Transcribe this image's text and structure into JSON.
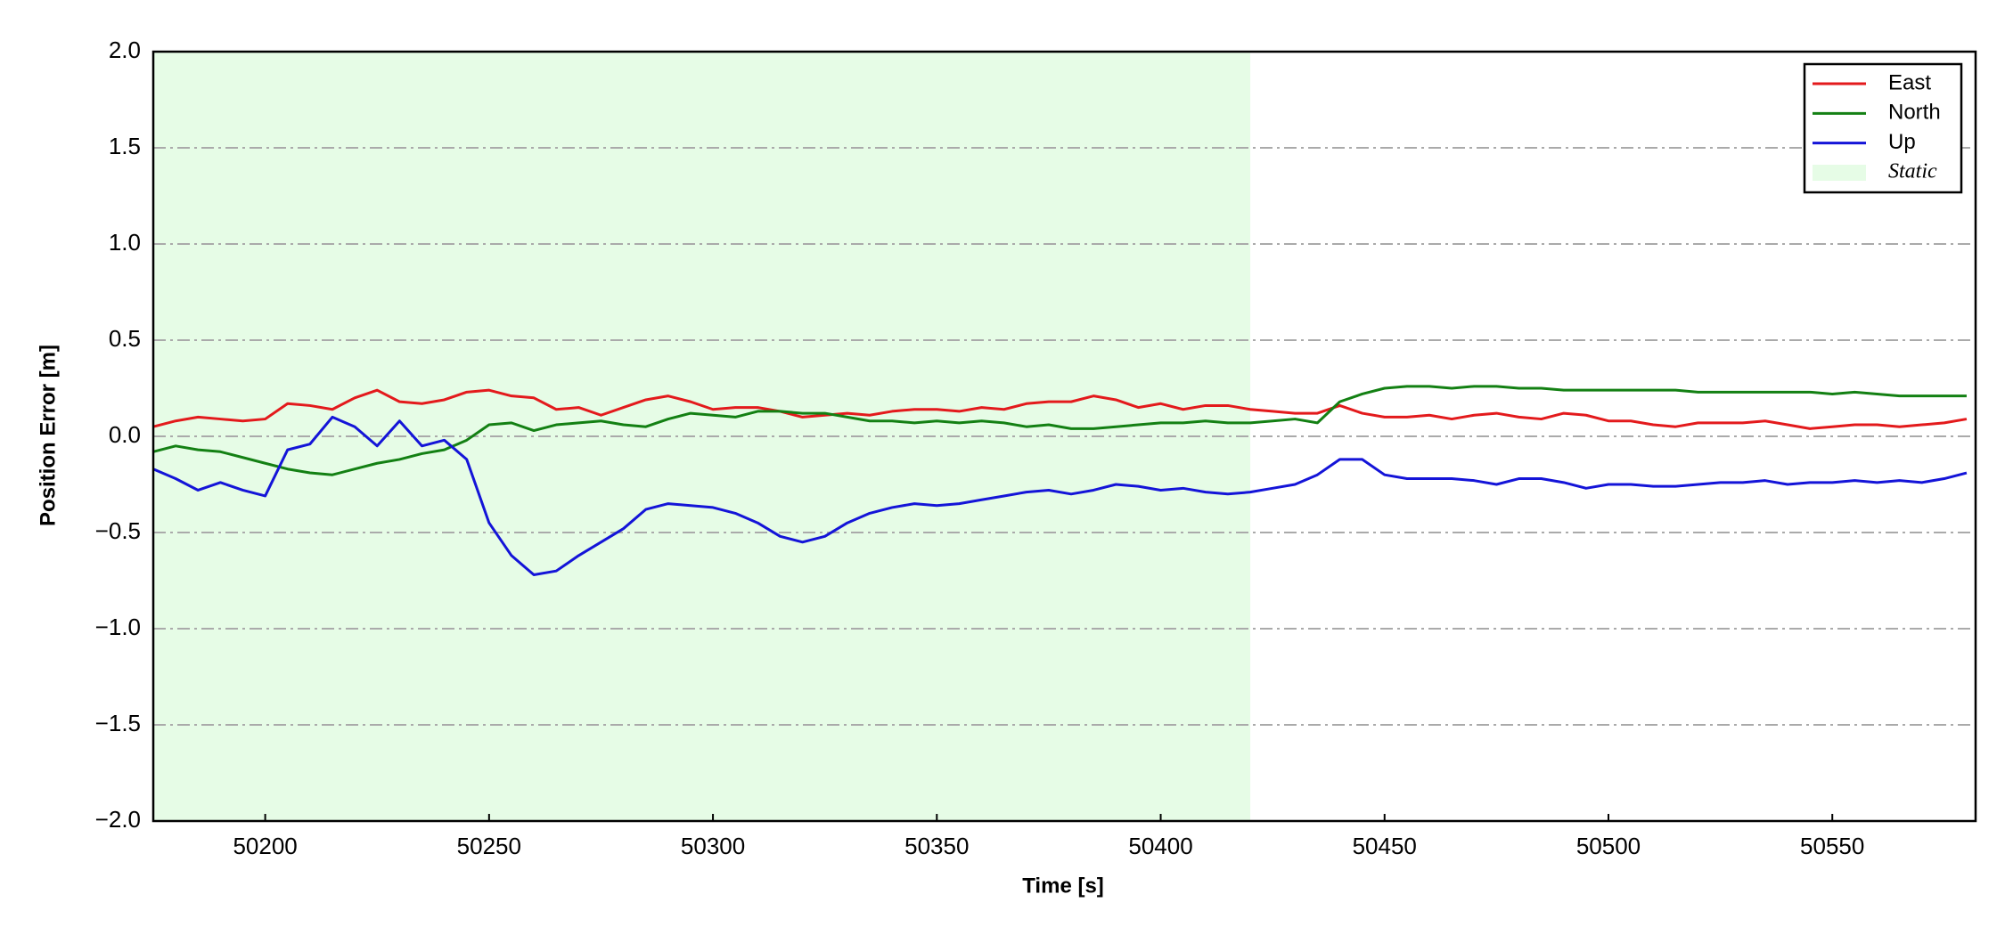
{
  "chart_data": {
    "type": "line",
    "xlabel": "Time [s]",
    "ylabel": "Position Error [m]",
    "x": [
      50175,
      50180,
      50185,
      50190,
      50195,
      50200,
      50205,
      50210,
      50215,
      50220,
      50225,
      50230,
      50235,
      50240,
      50245,
      50250,
      50255,
      50260,
      50265,
      50270,
      50275,
      50280,
      50285,
      50290,
      50295,
      50300,
      50305,
      50310,
      50315,
      50320,
      50325,
      50330,
      50335,
      50340,
      50345,
      50350,
      50355,
      50360,
      50365,
      50370,
      50375,
      50380,
      50385,
      50390,
      50395,
      50400,
      50405,
      50410,
      50415,
      50420,
      50425,
      50430,
      50435,
      50440,
      50445,
      50450,
      50455,
      50460,
      50465,
      50470,
      50475,
      50480,
      50485,
      50490,
      50495,
      50500,
      50505,
      50510,
      50515,
      50520,
      50525,
      50530,
      50535,
      50540,
      50545,
      50550,
      50555,
      50560,
      50565,
      50570,
      50575,
      50580
    ],
    "series": [
      {
        "name": "East",
        "color": "#e31a1c",
        "values": [
          0.05,
          0.08,
          0.1,
          0.09,
          0.08,
          0.09,
          0.17,
          0.16,
          0.14,
          0.2,
          0.24,
          0.18,
          0.17,
          0.19,
          0.23,
          0.24,
          0.21,
          0.2,
          0.14,
          0.15,
          0.11,
          0.15,
          0.19,
          0.21,
          0.18,
          0.14,
          0.15,
          0.15,
          0.13,
          0.1,
          0.11,
          0.12,
          0.11,
          0.13,
          0.14,
          0.14,
          0.13,
          0.15,
          0.14,
          0.17,
          0.18,
          0.18,
          0.21,
          0.19,
          0.15,
          0.17,
          0.14,
          0.16,
          0.16,
          0.14,
          0.13,
          0.12,
          0.12,
          0.16,
          0.12,
          0.1,
          0.1,
          0.11,
          0.09,
          0.11,
          0.12,
          0.1,
          0.09,
          0.12,
          0.11,
          0.08,
          0.08,
          0.06,
          0.05,
          0.07,
          0.07,
          0.07,
          0.08,
          0.06,
          0.04,
          0.05,
          0.06,
          0.06,
          0.05,
          0.06,
          0.07,
          0.09
        ]
      },
      {
        "name": "North",
        "color": "#138013",
        "values": [
          -0.08,
          -0.05,
          -0.07,
          -0.08,
          -0.11,
          -0.14,
          -0.17,
          -0.19,
          -0.2,
          -0.17,
          -0.14,
          -0.12,
          -0.09,
          -0.07,
          -0.02,
          0.06,
          0.07,
          0.03,
          0.06,
          0.07,
          0.08,
          0.06,
          0.05,
          0.09,
          0.12,
          0.11,
          0.1,
          0.13,
          0.13,
          0.12,
          0.12,
          0.1,
          0.08,
          0.08,
          0.07,
          0.08,
          0.07,
          0.08,
          0.07,
          0.05,
          0.06,
          0.04,
          0.04,
          0.05,
          0.06,
          0.07,
          0.07,
          0.08,
          0.07,
          0.07,
          0.08,
          0.09,
          0.07,
          0.18,
          0.22,
          0.25,
          0.26,
          0.26,
          0.25,
          0.26,
          0.26,
          0.25,
          0.25,
          0.24,
          0.24,
          0.24,
          0.24,
          0.24,
          0.24,
          0.23,
          0.23,
          0.23,
          0.23,
          0.23,
          0.23,
          0.22,
          0.23,
          0.22,
          0.21,
          0.21,
          0.21,
          0.21
        ]
      },
      {
        "name": "Up",
        "color": "#1414d8",
        "values": [
          -0.17,
          -0.22,
          -0.28,
          -0.24,
          -0.28,
          -0.31,
          -0.07,
          -0.04,
          0.1,
          0.05,
          -0.05,
          0.08,
          -0.05,
          -0.02,
          -0.12,
          -0.45,
          -0.62,
          -0.72,
          -0.7,
          -0.62,
          -0.55,
          -0.48,
          -0.38,
          -0.35,
          -0.36,
          -0.37,
          -0.4,
          -0.45,
          -0.52,
          -0.55,
          -0.52,
          -0.45,
          -0.4,
          -0.37,
          -0.35,
          -0.36,
          -0.35,
          -0.33,
          -0.31,
          -0.29,
          -0.28,
          -0.3,
          -0.28,
          -0.25,
          -0.26,
          -0.28,
          -0.27,
          -0.29,
          -0.3,
          -0.29,
          -0.27,
          -0.25,
          -0.2,
          -0.12,
          -0.12,
          -0.2,
          -0.22,
          -0.22,
          -0.22,
          -0.23,
          -0.25,
          -0.22,
          -0.22,
          -0.24,
          -0.27,
          -0.25,
          -0.25,
          -0.26,
          -0.26,
          -0.25,
          -0.24,
          -0.24,
          -0.23,
          -0.25,
          -0.24,
          -0.24,
          -0.23,
          -0.24,
          -0.23,
          -0.24,
          -0.22,
          -0.19
        ]
      }
    ],
    "shaded_region": {
      "name": "Static",
      "color": "#e6fce6",
      "start": 50175,
      "end": 50420
    },
    "xlim": [
      50175,
      50582
    ],
    "ylim": [
      -2.0,
      2.0
    ],
    "xticks": [
      50200,
      50250,
      50300,
      50350,
      50400,
      50450,
      50500,
      50550
    ],
    "yticks": [
      {
        "value": -2.0,
        "label": "−2.0"
      },
      {
        "value": -1.5,
        "label": "−1.5"
      },
      {
        "value": -1.0,
        "label": "−1.0"
      },
      {
        "value": -0.5,
        "label": "−0.5"
      },
      {
        "value": 0,
        "label": "0.0"
      },
      0.5,
      {
        "value": 1.0,
        "label": "1.0"
      },
      1.5,
      {
        "value": 2.0,
        "label": "2.0"
      }
    ],
    "grid": true,
    "legend": "upper right"
  }
}
